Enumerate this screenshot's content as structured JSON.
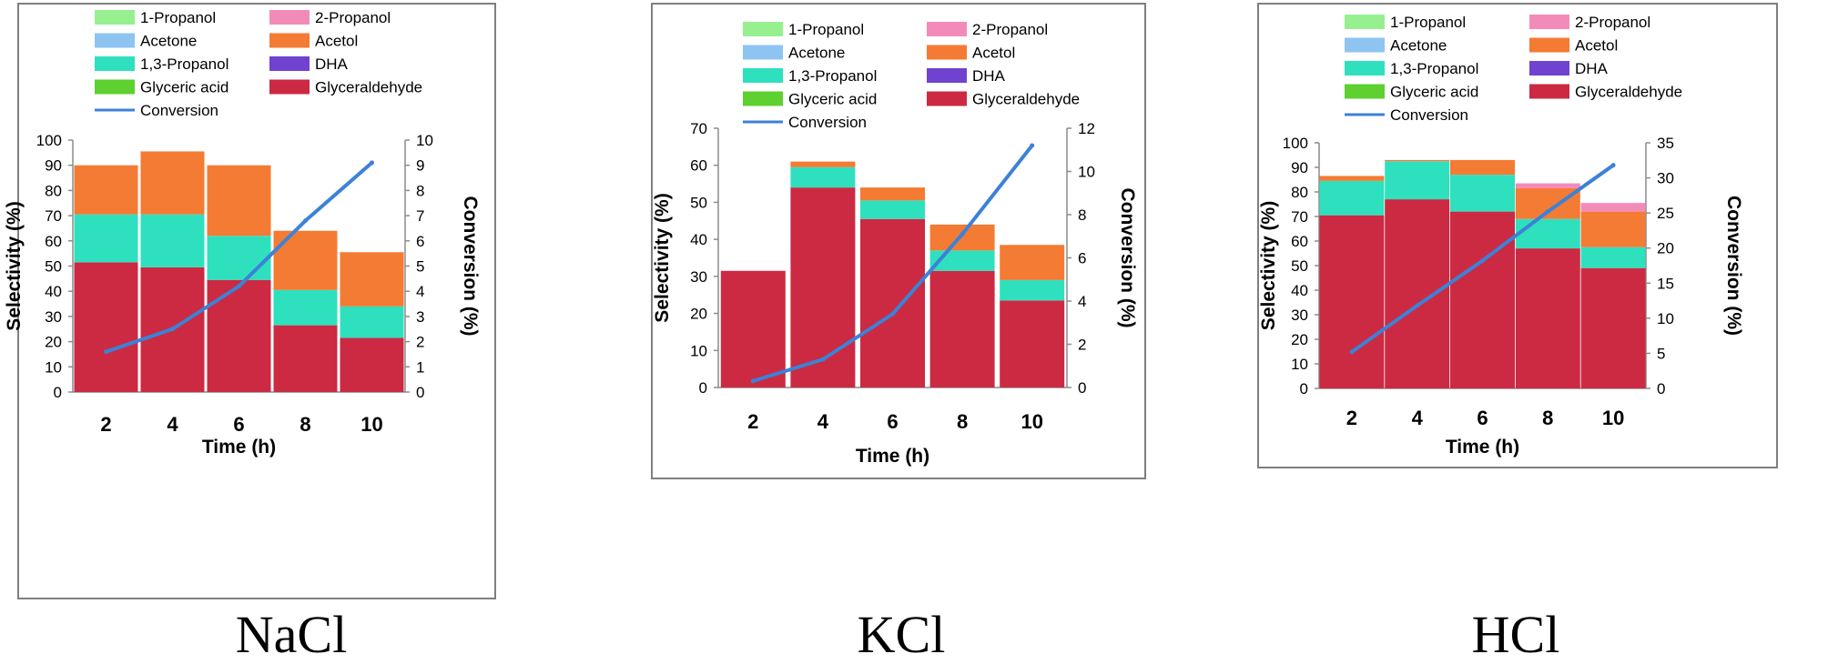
{
  "legend_items": [
    {
      "label": "1-Propanol",
      "color": "#97f08f",
      "kind": "box"
    },
    {
      "label": "2-Propanol",
      "color": "#f38bb9",
      "kind": "box"
    },
    {
      "label": "Acetone",
      "color": "#8ec4f1",
      "kind": "box"
    },
    {
      "label": "Acetol",
      "color": "#f47b33",
      "kind": "box"
    },
    {
      "label": "1,3-Propanol",
      "color": "#2fe0bf",
      "kind": "box"
    },
    {
      "label": "DHA",
      "color": "#6f42cf",
      "kind": "box"
    },
    {
      "label": "Glyceric acid",
      "color": "#5ed030",
      "kind": "box"
    },
    {
      "label": "Glyceraldehyde",
      "color": "#cb2a42",
      "kind": "box"
    },
    {
      "label": "Conversion",
      "color": "#3c82d7",
      "kind": "line"
    }
  ],
  "series_colors": {
    "Glyceraldehyde": "#cb2a42",
    "1,3-Propanol": "#2fe0bf",
    "Acetol": "#f47b33",
    "2-Propanol": "#f38bb9",
    "Conversion": "#3c82d7"
  },
  "chart_data": [
    {
      "type": "bar",
      "caption": "NaCl",
      "xlabel": "Time (h)",
      "ylabel": "Selectivity (%)",
      "y2label": "Conversion (%)",
      "categories": [
        "2",
        "4",
        "6",
        "8",
        "10"
      ],
      "ylim": [
        0,
        100
      ],
      "yticks": [
        "0",
        "10",
        "20",
        "30",
        "40",
        "50",
        "60",
        "70",
        "80",
        "90",
        "100"
      ],
      "y2lim": [
        0,
        10
      ],
      "y2ticks": [
        "0",
        "1",
        "2",
        "3",
        "4",
        "5",
        "6",
        "7",
        "8",
        "9",
        "10"
      ],
      "series": [
        {
          "name": "Glyceraldehyde",
          "values": [
            51.5,
            49.5,
            44.5,
            26.5,
            21.5
          ]
        },
        {
          "name": "1,3-Propanol",
          "values": [
            19,
            21,
            17.5,
            14,
            12.5
          ]
        },
        {
          "name": "Acetol",
          "values": [
            19.5,
            25,
            28,
            23.5,
            21.5
          ]
        }
      ],
      "conversion": [
        1.6,
        2.5,
        4.2,
        6.8,
        9.1
      ]
    },
    {
      "type": "bar",
      "caption": "KCl",
      "xlabel": "Time (h)",
      "ylabel": "Selectivity (%)",
      "y2label": "Conversion (%)",
      "categories": [
        "2",
        "4",
        "6",
        "8",
        "10"
      ],
      "ylim": [
        0,
        70
      ],
      "yticks": [
        "0",
        "10",
        "20",
        "30",
        "40",
        "50",
        "60",
        "70"
      ],
      "y2lim": [
        0,
        12
      ],
      "y2ticks": [
        "0",
        "2",
        "4",
        "6",
        "8",
        "10",
        "12"
      ],
      "series": [
        {
          "name": "Glyceraldehyde",
          "values": [
            31.5,
            54,
            45.5,
            31.5,
            23.5
          ]
        },
        {
          "name": "1,3-Propanol",
          "values": [
            0,
            5.5,
            5,
            5.5,
            5.5
          ]
        },
        {
          "name": "Acetol",
          "values": [
            0,
            1.5,
            3.5,
            7,
            9.5
          ]
        }
      ],
      "conversion": [
        0.3,
        1.3,
        3.4,
        7.1,
        11.2
      ]
    },
    {
      "type": "bar",
      "caption": "HCl",
      "xlabel": "Time (h)",
      "ylabel": "Selectivity (%)",
      "y2label": "Conversion (%)",
      "categories": [
        "2",
        "4",
        "6",
        "8",
        "10"
      ],
      "ylim": [
        0,
        100
      ],
      "yticks": [
        "0",
        "10",
        "20",
        "30",
        "40",
        "50",
        "60",
        "70",
        "80",
        "90",
        "100"
      ],
      "y2lim": [
        0,
        35
      ],
      "y2ticks": [
        "0",
        "5",
        "10",
        "15",
        "20",
        "25",
        "30",
        "35"
      ],
      "series": [
        {
          "name": "Glyceraldehyde",
          "values": [
            70.5,
            77,
            72,
            57,
            49
          ]
        },
        {
          "name": "1,3-Propanol",
          "values": [
            14,
            15.5,
            15,
            12,
            8.5
          ]
        },
        {
          "name": "Acetol",
          "values": [
            2,
            0.5,
            6,
            12.5,
            14.5
          ]
        },
        {
          "name": "2-Propanol",
          "values": [
            0,
            0,
            0,
            2,
            3.5
          ]
        }
      ],
      "conversion": [
        5.2,
        11.8,
        18.2,
        25.2,
        31.8
      ]
    }
  ]
}
